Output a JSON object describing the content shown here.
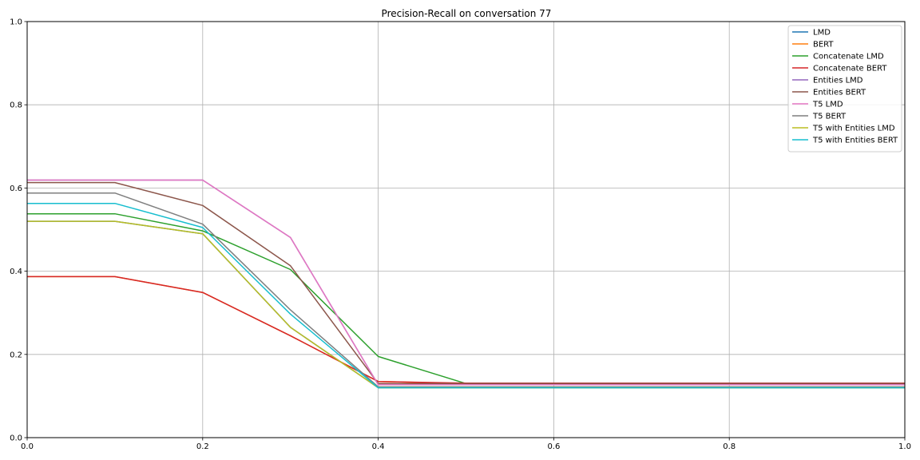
{
  "chart_data": {
    "type": "line",
    "title": "Precision-Recall on conversation 77",
    "xlabel": "",
    "ylabel": "",
    "xlim": [
      0.0,
      1.0
    ],
    "ylim": [
      0.0,
      1.0
    ],
    "xticks": [
      "0.0",
      "0.2",
      "0.4",
      "0.6",
      "0.8",
      "1.0"
    ],
    "yticks": [
      "0.0",
      "0.2",
      "0.4",
      "0.6",
      "0.8",
      "1.0"
    ],
    "grid": true,
    "legend_position": "top-right",
    "x": [
      0.0,
      0.1,
      0.2,
      0.3,
      0.4,
      0.5,
      0.6,
      0.7,
      0.8,
      0.9,
      1.0
    ],
    "series": [
      {
        "name": "LMD",
        "color": "#1f77b4",
        "values": [
          0.52,
          0.52,
          0.49,
          0.265,
          0.12,
          0.12,
          0.12,
          0.12,
          0.12,
          0.12,
          0.12
        ]
      },
      {
        "name": "BERT",
        "color": "#ff7f0e",
        "values": [
          0.387,
          0.387,
          0.349,
          0.245,
          0.135,
          0.13,
          0.13,
          0.13,
          0.13,
          0.13,
          0.13
        ]
      },
      {
        "name": "Concatenate LMD",
        "color": "#2ca02c",
        "values": [
          0.538,
          0.538,
          0.497,
          0.404,
          0.195,
          0.13,
          0.13,
          0.13,
          0.13,
          0.13,
          0.13
        ]
      },
      {
        "name": "Concatenate BERT",
        "color": "#d62728",
        "values": [
          0.387,
          0.387,
          0.349,
          0.245,
          0.135,
          0.131,
          0.131,
          0.131,
          0.131,
          0.131,
          0.131
        ]
      },
      {
        "name": "Entities LMD",
        "color": "#9467bd",
        "values": [
          0.619,
          0.619,
          0.619,
          0.481,
          0.127,
          0.127,
          0.127,
          0.127,
          0.127,
          0.127,
          0.127
        ]
      },
      {
        "name": "Entities BERT",
        "color": "#8c564b",
        "values": [
          0.613,
          0.613,
          0.558,
          0.413,
          0.13,
          0.13,
          0.13,
          0.13,
          0.13,
          0.13,
          0.13
        ]
      },
      {
        "name": "T5 LMD",
        "color": "#e377c2",
        "values": [
          0.619,
          0.619,
          0.619,
          0.481,
          0.127,
          0.127,
          0.127,
          0.127,
          0.127,
          0.127,
          0.127
        ]
      },
      {
        "name": "T5 BERT",
        "color": "#7f7f7f",
        "values": [
          0.588,
          0.588,
          0.513,
          0.307,
          0.122,
          0.122,
          0.122,
          0.122,
          0.122,
          0.122,
          0.122
        ]
      },
      {
        "name": "T5 with Entities LMD",
        "color": "#bcbd22",
        "values": [
          0.52,
          0.52,
          0.49,
          0.265,
          0.12,
          0.12,
          0.12,
          0.12,
          0.12,
          0.12,
          0.12
        ]
      },
      {
        "name": "T5 with Entities BERT",
        "color": "#17becf",
        "values": [
          0.563,
          0.563,
          0.505,
          0.297,
          0.12,
          0.12,
          0.12,
          0.12,
          0.12,
          0.12,
          0.12
        ]
      }
    ]
  }
}
